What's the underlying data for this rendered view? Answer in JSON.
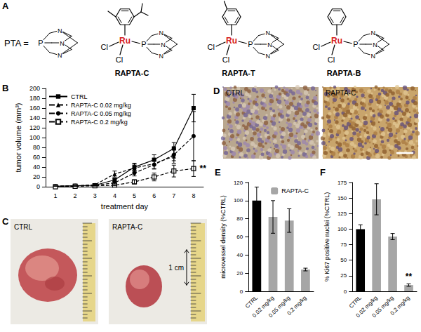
{
  "panels": {
    "A": {
      "panel_label": "A",
      "ligand_label": "PTA =",
      "atoms": {
        "metal": "Ru",
        "halide": "Cl",
        "phosphorus": "P",
        "nitrogen": "N"
      },
      "complexes": [
        "RAPTA-C",
        "RAPTA-T",
        "RAPTA-B"
      ]
    },
    "C": {
      "panel_label": "C",
      "photos": [
        "CTRL",
        "RAPTA-C"
      ],
      "scale_label": "1 cm"
    },
    "D": {
      "panel_label": "D",
      "images": [
        "CTRL",
        "RAPTA-C"
      ]
    }
  },
  "chart_data": [
    {
      "panel_label": "B",
      "type": "line",
      "xlabel": "treatment day",
      "ylabel": "tumor volume (mm³)",
      "categories": [
        "1",
        "2",
        "3",
        "4",
        "5",
        "6",
        "7",
        "8"
      ],
      "ylim": [
        0,
        200
      ],
      "yticks": [
        0,
        20,
        40,
        60,
        80,
        100,
        120,
        140,
        160,
        180,
        200
      ],
      "grid": false,
      "legend": "upper left",
      "series": [
        {
          "name": "CTRL",
          "color": "#000000",
          "marker": "square",
          "line_style": "solid",
          "values": [
            1,
            2,
            3,
            14,
            40,
            55,
            78,
            160
          ],
          "errors": [
            0.5,
            0.5,
            1,
            3,
            8,
            10,
            12,
            28
          ]
        },
        {
          "name": "RAPTA-C 0.02 mg/kg",
          "color": "#000000",
          "marker": "triangle",
          "line_style": "dashed",
          "values": [
            1,
            2,
            4,
            26,
            38,
            47,
            62,
            null
          ],
          "errors": [
            0.5,
            0.5,
            1,
            6,
            8,
            10,
            14,
            null
          ]
        },
        {
          "name": "RAPTA-C 0.05 mg/kg",
          "color": "#000000",
          "marker": "circle",
          "line_style": "dashed",
          "values": [
            1,
            2,
            3,
            8,
            28,
            45,
            65,
            103
          ],
          "errors": [
            0.5,
            0.5,
            1,
            2,
            6,
            9,
            12,
            50
          ]
        },
        {
          "name": "RAPTA-C 0.2 mg/kg",
          "color": "#000000",
          "marker": "open square",
          "line_style": "dashed",
          "values": [
            0,
            1,
            2,
            3,
            10,
            20,
            32,
            37
          ],
          "errors": [
            0.3,
            0.3,
            0.5,
            1,
            4,
            8,
            12,
            16
          ]
        }
      ],
      "annotations": [
        {
          "series": "RAPTA-C 0.2 mg/kg",
          "category": "8",
          "text": "**"
        }
      ]
    },
    {
      "panel_label": "E",
      "type": "bar",
      "ylabel": "microvessel density (%CTRL)",
      "categories": [
        "CTRL",
        "0.02 mg/kg",
        "0.05 mg/kg",
        "0.2 mg/kg"
      ],
      "ylim": [
        0,
        120
      ],
      "yticks": [
        0,
        20,
        40,
        60,
        80,
        100,
        120
      ],
      "grid": false,
      "legend": "upper right",
      "series": [
        {
          "name": "RAPTA-C",
          "color": "#a6a6a6",
          "colors": [
            "#000000",
            "#a6a6a6",
            "#a6a6a6",
            "#a6a6a6"
          ],
          "values": [
            100,
            82,
            78,
            24
          ],
          "errors": [
            15,
            18,
            13,
            1.5
          ]
        }
      ]
    },
    {
      "panel_label": "F",
      "type": "bar",
      "ylabel": "% Ki67 positive nuclei (%CTRL)",
      "categories": [
        "CTRL",
        "0.02 mg/kg",
        "0.05 mg/kg",
        "0.2 mg/kg"
      ],
      "ylim": [
        0,
        175
      ],
      "yticks": [
        0,
        25,
        50,
        75,
        100,
        125,
        150,
        175
      ],
      "grid": false,
      "colors": [
        "#000000",
        "#a6a6a6",
        "#a6a6a6",
        "#a6a6a6"
      ],
      "values": [
        100,
        148,
        88,
        10
      ],
      "errors": [
        7,
        25,
        5,
        2
      ],
      "annotations": [
        {
          "category": "0.2 mg/kg",
          "text": "**"
        }
      ]
    }
  ]
}
